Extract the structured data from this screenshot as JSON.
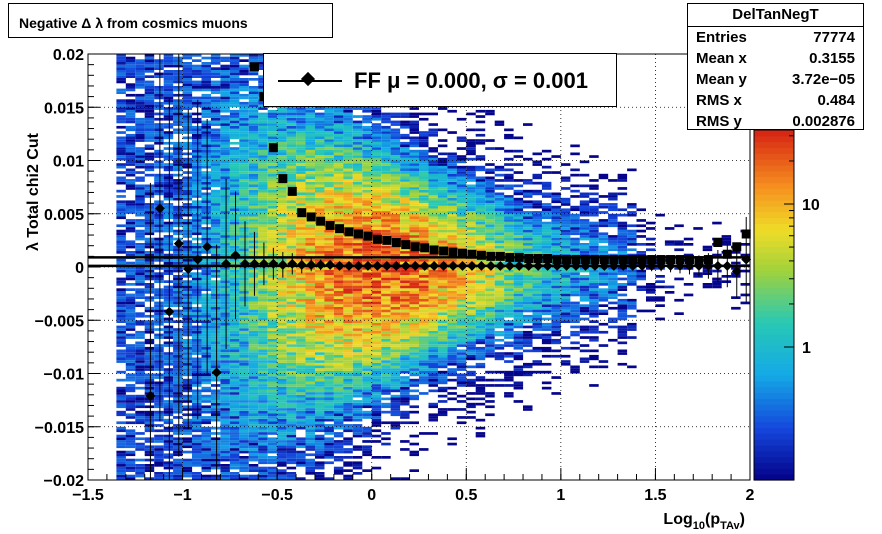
{
  "title": "Negative Δ λ from cosmics muons",
  "stats": {
    "name": "DelTanNegT",
    "rows": [
      {
        "label": "Entries",
        "value": "77774"
      },
      {
        "label": "Mean x",
        "value": "0.3155"
      },
      {
        "label": "Mean y",
        "value": "3.72e−05"
      },
      {
        "label": "RMS x",
        "value": "0.484"
      },
      {
        "label": "RMS y",
        "value": "0.002876"
      }
    ]
  },
  "legend": {
    "label": "FF μ =  0.000, σ =   0.001"
  },
  "colors": {
    "frame": "#000000",
    "grid": "#000000",
    "markers": "#000000"
  },
  "chart_data": {
    "type": "heatmap",
    "xlabel": "Log10(pTAv)",
    "ylabel": "λ  Total chi2 Cut",
    "xlim": [
      -1.5,
      2.0
    ],
    "ylim": [
      -0.02,
      0.02
    ],
    "x_ticks": [
      "−1.5",
      "−1",
      "−0.5",
      "0",
      "0.5",
      "1",
      "1.5",
      "2"
    ],
    "y_ticks": [
      "−0.02",
      "−0.015",
      "−0.01",
      "−0.005",
      "0",
      "0.005",
      "0.01",
      "0.015",
      "0.02"
    ],
    "z_scale": "log",
    "z_ticks": [
      "1",
      "10"
    ],
    "grid": true,
    "mean_series": {
      "name": "FF mean",
      "x": [
        -1.17,
        -1.12,
        -1.07,
        -1.02,
        -0.97,
        -0.92,
        -0.87,
        -0.82,
        -0.77,
        -0.72,
        -0.67,
        -0.62,
        -0.57,
        -0.52,
        -0.47,
        -0.42,
        -0.37,
        -0.32,
        -0.27,
        -0.22,
        -0.17,
        -0.12,
        -0.07,
        -0.02,
        0.03,
        0.08,
        0.13,
        0.18,
        0.23,
        0.28,
        0.33,
        0.38,
        0.43,
        0.48,
        0.53,
        0.58,
        0.63,
        0.68,
        0.73,
        0.78,
        0.83,
        0.88,
        0.93,
        0.98,
        1.03,
        1.08,
        1.13,
        1.18,
        1.23,
        1.28,
        1.33,
        1.38,
        1.43,
        1.48,
        1.53,
        1.58,
        1.63,
        1.68,
        1.73,
        1.78,
        1.83,
        1.88,
        1.93,
        1.98
      ],
      "y": [
        -0.0121,
        0.0055,
        -0.0042,
        0.0022,
        -0.0002,
        0.0007,
        0.0019,
        -0.0099,
        0.0003,
        0.0011,
        0.0003,
        0.0003,
        0.0003,
        0.0003,
        0.0002,
        0.0003,
        0.0002,
        0.0002,
        0.0002,
        0.0002,
        0.0001,
        0.0001,
        0.0001,
        0.0001,
        0.0001,
        0.0001,
        0.0001,
        0.0001,
        0.0001,
        0.0001,
        0.0001,
        0.0001,
        0.0001,
        0.0001,
        0.0001,
        0.0001,
        0.0001,
        0.0001,
        0.0001,
        0.0001,
        0.0001,
        0.0001,
        0.0001,
        0.0001,
        0.0001,
        0.0001,
        0.0001,
        0.0001,
        0.0001,
        0.0001,
        0.0001,
        0.0001,
        0.0001,
        0.0001,
        0.0001,
        0.0001,
        0.0001,
        0.0001,
        0.0001,
        0.0001,
        0.0001,
        0.0001,
        -0.0004,
        0.0007
      ],
      "yerr": [
        0.02,
        0.02,
        0.02,
        0.02,
        0.015,
        0.015,
        0.012,
        0.012,
        0.008,
        0.006,
        0.004,
        0.003,
        0.002,
        0.0015,
        0.0012,
        0.001,
        0.0008,
        0.0006,
        0.0005,
        0.0004,
        0.0003,
        0.0003,
        0.0003,
        0.0003,
        0.0003,
        0.0003,
        0.0003,
        0.0003,
        0.0003,
        0.0003,
        0.0003,
        0.0003,
        0.0003,
        0.0003,
        0.0003,
        0.0003,
        0.0003,
        0.0003,
        0.0003,
        0.0003,
        0.0003,
        0.0003,
        0.0003,
        0.0003,
        0.0003,
        0.0003,
        0.0003,
        0.0003,
        0.0003,
        0.0003,
        0.0003,
        0.0004,
        0.0004,
        0.0005,
        0.0005,
        0.0006,
        0.0007,
        0.0008,
        0.001,
        0.0012,
        0.0015,
        0.002,
        0.0025,
        0.004
      ]
    },
    "sigma_series": {
      "name": "FF sigma",
      "x": [
        -0.62,
        -0.57,
        -0.52,
        -0.47,
        -0.42,
        -0.37,
        -0.32,
        -0.27,
        -0.22,
        -0.17,
        -0.12,
        -0.07,
        -0.02,
        0.03,
        0.08,
        0.13,
        0.18,
        0.23,
        0.28,
        0.33,
        0.38,
        0.43,
        0.48,
        0.53,
        0.58,
        0.63,
        0.68,
        0.73,
        0.78,
        0.83,
        0.88,
        0.93,
        0.98,
        1.03,
        1.08,
        1.13,
        1.18,
        1.23,
        1.28,
        1.33,
        1.38,
        1.43,
        1.48,
        1.53,
        1.58,
        1.63,
        1.68,
        1.73,
        1.78,
        1.83,
        1.88,
        1.93,
        1.98
      ],
      "y": [
        0.0188,
        0.016,
        0.0112,
        0.0083,
        0.0071,
        0.0051,
        0.0047,
        0.0043,
        0.0039,
        0.0036,
        0.0033,
        0.0031,
        0.0029,
        0.0026,
        0.0025,
        0.0023,
        0.0021,
        0.0019,
        0.0018,
        0.0016,
        0.0015,
        0.0014,
        0.0013,
        0.0012,
        0.0011,
        0.001,
        0.001,
        0.0009,
        0.0009,
        0.0008,
        0.0008,
        0.0008,
        0.0007,
        0.0007,
        0.0007,
        0.0007,
        0.0007,
        0.0007,
        0.0007,
        0.0007,
        0.0007,
        0.0007,
        0.0007,
        0.0007,
        0.0007,
        0.0007,
        0.0007,
        0.0006,
        0.0007,
        0.0023,
        0.0012,
        0.0019,
        0.0031
      ]
    },
    "reference_lines": [
      0.0009,
      0.0001
    ]
  }
}
